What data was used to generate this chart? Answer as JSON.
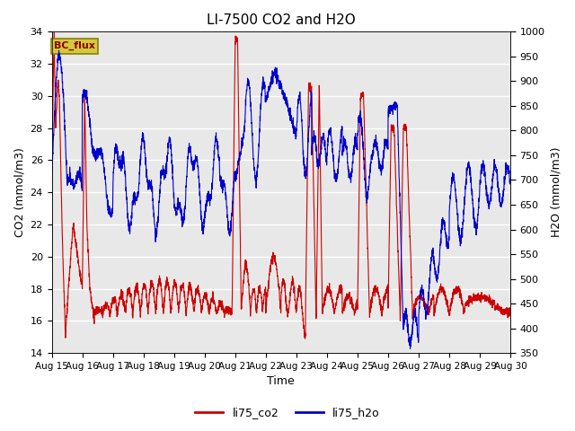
{
  "title": "LI-7500 CO2 and H2O",
  "xlabel": "Time",
  "ylabel_left": "CO2 (mmol/m3)",
  "ylabel_right": "H2O (mmol/m3)",
  "ylim_left": [
    14,
    34
  ],
  "ylim_right": [
    350,
    1000
  ],
  "annotation": "BC_flux",
  "bg_color": "#e8e8e8",
  "line_co2_color": "#cc0000",
  "line_h2o_color": "#0000cc",
  "legend_co2": "li75_co2",
  "legend_h2o": "li75_h2o",
  "xtick_labels": [
    "Aug 15",
    "Aug 16",
    "Aug 17",
    "Aug 18",
    "Aug 19",
    "Aug 20",
    "Aug 21",
    "Aug 22",
    "Aug 23",
    "Aug 24",
    "Aug 25",
    "Aug 26",
    "Aug 27",
    "Aug 28",
    "Aug 29",
    "Aug 30"
  ],
  "figsize": [
    6.4,
    4.8
  ],
  "dpi": 100
}
